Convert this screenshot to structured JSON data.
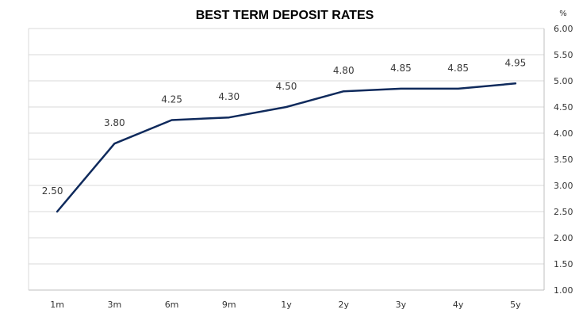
{
  "chart_data": {
    "type": "line",
    "title": "BEST TERM DEPOSIT RATES",
    "y_unit": "%",
    "categories": [
      "1m",
      "3m",
      "6m",
      "9m",
      "1y",
      "2y",
      "3y",
      "4y",
      "5y"
    ],
    "series": [
      {
        "values": [
          2.5,
          3.8,
          4.25,
          4.3,
          4.5,
          4.8,
          4.85,
          4.85,
          4.95
        ]
      }
    ],
    "data_labels": [
      "2.50",
      "3.80",
      "4.25",
      "4.30",
      "4.50",
      "4.80",
      "4.85",
      "4.85",
      "4.95"
    ],
    "ylim": [
      1.0,
      6.0
    ],
    "y_ticks": [
      "1.00",
      "1.50",
      "2.00",
      "2.50",
      "3.00",
      "3.50",
      "4.00",
      "4.50",
      "5.00",
      "5.50",
      "6.00"
    ],
    "y_axis_position": "right",
    "grid": "horizontal",
    "legend": "none",
    "line_color": "#0f2a5c",
    "grid_color": "#d9d9d9"
  }
}
